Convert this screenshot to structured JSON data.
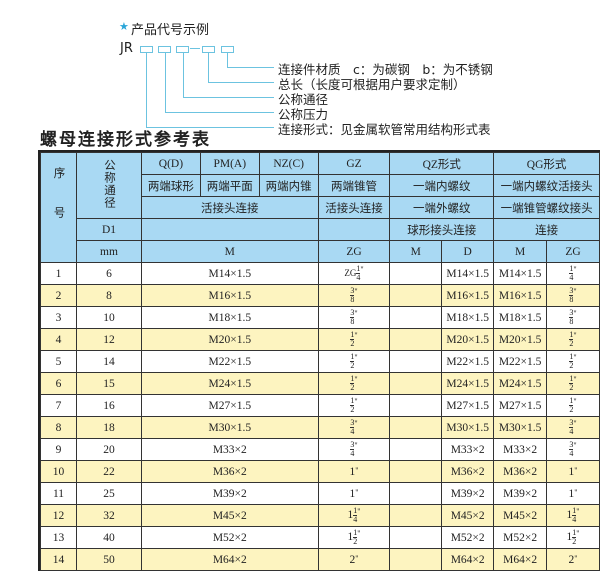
{
  "code_example": {
    "title": "产品代号示例",
    "prefix": "JR",
    "labels": [
      "连接件材质　c：为碳钢　b：为不锈钢",
      "总长（长度可根据用户要求定制）",
      "公称通径",
      "公称压力",
      "连接形式：见金属软管常用结构形式表"
    ]
  },
  "table_title": "螺母连接形式参考表",
  "colors": {
    "header": "#a9d9f3",
    "alt_row": "#fdf4c0",
    "accent": "#2aa5d8"
  },
  "header": {
    "seq": "序号",
    "dn": "公称通径",
    "d1": "D1",
    "mm": "mm",
    "qd": "Q(D)",
    "pm": "PM(A)",
    "nz": "NZ(C)",
    "gz": "GZ",
    "qz": "QZ形式",
    "qg": "QG形式",
    "qd_desc": "两端球形",
    "pm_desc": "两端平面",
    "nz_desc": "两端内锥",
    "gz_desc": "两端锥管",
    "qz_desc1": "一端内螺纹",
    "qg_desc1": "一端内螺纹活接头",
    "union": "活接头连接",
    "gz_union": "活接头连接",
    "qz_desc2": "一端外螺纹",
    "qg_desc2": "一端锥管螺纹接头",
    "qz_desc3": "球形接头连接",
    "qg_desc3": "连接",
    "m": "M",
    "zg": "ZG",
    "qz_m": "M",
    "qz_d": "D",
    "qg_m": "M",
    "qg_zg": "ZG"
  },
  "rows": [
    {
      "no": "1",
      "dn": "6",
      "m": "M14×1.5",
      "zg": {
        "pre": "ZG",
        "w": "",
        "n": "1",
        "d": "4"
      },
      "qz_d": "M14×1.5",
      "qg_m": "M14×1.5",
      "qg_zg": {
        "w": "",
        "n": "1",
        "d": "4"
      }
    },
    {
      "no": "2",
      "dn": "8",
      "m": "M16×1.5",
      "zg": {
        "w": "",
        "n": "3",
        "d": "8"
      },
      "qz_d": "M16×1.5",
      "qg_m": "M16×1.5",
      "qg_zg": {
        "w": "",
        "n": "3",
        "d": "8"
      }
    },
    {
      "no": "3",
      "dn": "10",
      "m": "M18×1.5",
      "zg": {
        "w": "",
        "n": "3",
        "d": "8"
      },
      "qz_d": "M18×1.5",
      "qg_m": "M18×1.5",
      "qg_zg": {
        "w": "",
        "n": "3",
        "d": "8"
      }
    },
    {
      "no": "4",
      "dn": "12",
      "m": "M20×1.5",
      "zg": {
        "w": "",
        "n": "1",
        "d": "2"
      },
      "qz_d": "M20×1.5",
      "qg_m": "M20×1.5",
      "qg_zg": {
        "w": "",
        "n": "1",
        "d": "2"
      }
    },
    {
      "no": "5",
      "dn": "14",
      "m": "M22×1.5",
      "zg": {
        "w": "",
        "n": "1",
        "d": "2"
      },
      "qz_d": "M22×1.5",
      "qg_m": "M22×1.5",
      "qg_zg": {
        "w": "",
        "n": "1",
        "d": "2"
      }
    },
    {
      "no": "6",
      "dn": "15",
      "m": "M24×1.5",
      "zg": {
        "w": "",
        "n": "1",
        "d": "2"
      },
      "qz_d": "M24×1.5",
      "qg_m": "M24×1.5",
      "qg_zg": {
        "w": "",
        "n": "1",
        "d": "2"
      }
    },
    {
      "no": "7",
      "dn": "16",
      "m": "M27×1.5",
      "zg": {
        "w": "",
        "n": "1",
        "d": "2"
      },
      "qz_d": "M27×1.5",
      "qg_m": "M27×1.5",
      "qg_zg": {
        "w": "",
        "n": "1",
        "d": "2"
      }
    },
    {
      "no": "8",
      "dn": "18",
      "m": "M30×1.5",
      "zg": {
        "w": "",
        "n": "3",
        "d": "4"
      },
      "qz_d": "M30×1.5",
      "qg_m": "M30×1.5",
      "qg_zg": {
        "w": "",
        "n": "3",
        "d": "4"
      }
    },
    {
      "no": "9",
      "dn": "20",
      "m": "M33×2",
      "zg": {
        "w": "",
        "n": "3",
        "d": "4"
      },
      "qz_d": "M33×2",
      "qg_m": "M33×2",
      "qg_zg": {
        "w": "",
        "n": "3",
        "d": "4"
      }
    },
    {
      "no": "10",
      "dn": "22",
      "m": "M36×2",
      "zg": {
        "w": "1"
      },
      "qz_d": "M36×2",
      "qg_m": "M36×2",
      "qg_zg": {
        "w": "1"
      }
    },
    {
      "no": "11",
      "dn": "25",
      "m": "M39×2",
      "zg": {
        "w": "1"
      },
      "qz_d": "M39×2",
      "qg_m": "M39×2",
      "qg_zg": {
        "w": "1"
      }
    },
    {
      "no": "12",
      "dn": "32",
      "m": "M45×2",
      "zg": {
        "w": "1",
        "n": "1",
        "d": "4"
      },
      "qz_d": "M45×2",
      "qg_m": "M45×2",
      "qg_zg": {
        "w": "1",
        "n": "1",
        "d": "4"
      }
    },
    {
      "no": "13",
      "dn": "40",
      "m": "M52×2",
      "zg": {
        "w": "1",
        "n": "1",
        "d": "2"
      },
      "qz_d": "M52×2",
      "qg_m": "M52×2",
      "qg_zg": {
        "w": "1",
        "n": "1",
        "d": "2"
      }
    },
    {
      "no": "14",
      "dn": "50",
      "m": "M64×2",
      "zg": {
        "w": "2"
      },
      "qz_d": "M64×2",
      "qg_m": "M64×2",
      "qg_zg": {
        "w": "2"
      }
    }
  ]
}
